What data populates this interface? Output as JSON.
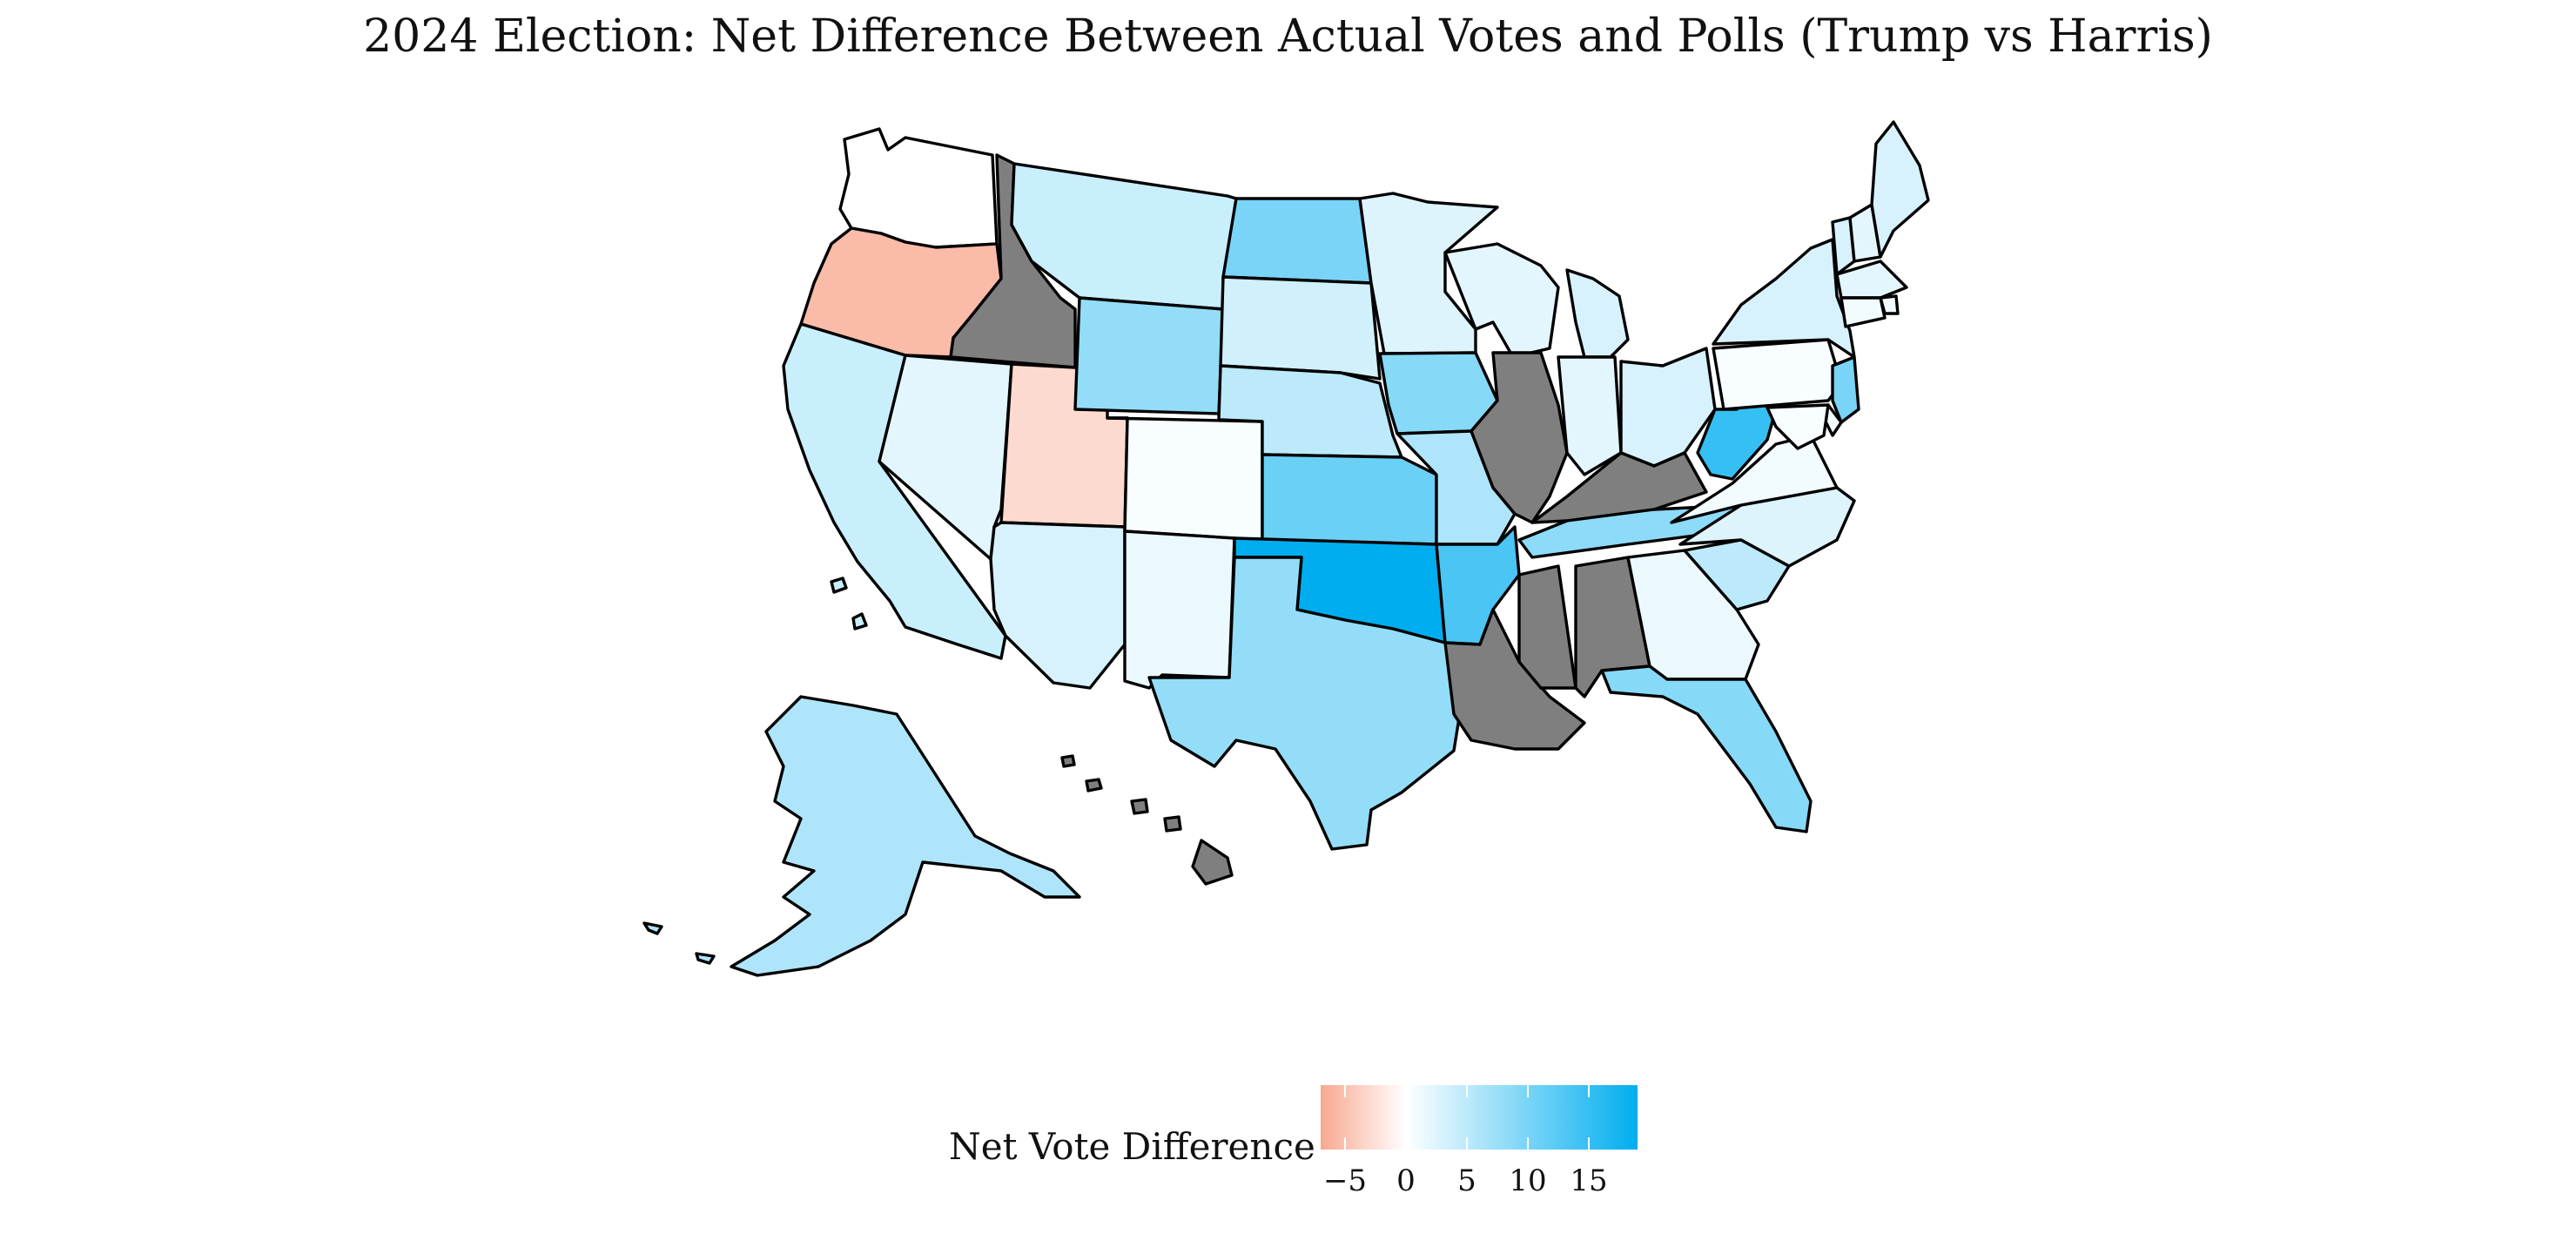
{
  "map": {
    "title": "2024 Election: Net Difference Between Actual Votes and Polls (Trump vs Harris)",
    "projection": "albers-usa-with-insets",
    "no_data_color": "#7f7f7f",
    "scale": {
      "min": -7,
      "max": 19,
      "low_color": "#f8a890",
      "mid_color": "#ffffff",
      "high_color": "#00aeef"
    },
    "states": [
      {
        "code": "WA",
        "value": 0.0
      },
      {
        "code": "OR",
        "value": -5.5
      },
      {
        "code": "CA",
        "value": 4.0
      },
      {
        "code": "ID",
        "value": null
      },
      {
        "code": "NV",
        "value": 2.0
      },
      {
        "code": "UT",
        "value": -3.0
      },
      {
        "code": "AZ",
        "value": 3.0
      },
      {
        "code": "MT",
        "value": 4.0
      },
      {
        "code": "WY",
        "value": 8.0
      },
      {
        "code": "CO",
        "value": 0.5
      },
      {
        "code": "NM",
        "value": 1.5
      },
      {
        "code": "ND",
        "value": 10.0
      },
      {
        "code": "SD",
        "value": 3.5
      },
      {
        "code": "NE",
        "value": 5.0
      },
      {
        "code": "KS",
        "value": 11.0
      },
      {
        "code": "OK",
        "value": 19.0
      },
      {
        "code": "TX",
        "value": 8.0
      },
      {
        "code": "MN",
        "value": 2.5
      },
      {
        "code": "IA",
        "value": 9.0
      },
      {
        "code": "MO",
        "value": 6.0
      },
      {
        "code": "AR",
        "value": 13.5
      },
      {
        "code": "LA",
        "value": null
      },
      {
        "code": "WI",
        "value": 2.0
      },
      {
        "code": "IL",
        "value": null
      },
      {
        "code": "MI",
        "value": 3.0
      },
      {
        "code": "IN",
        "value": 2.0
      },
      {
        "code": "OH",
        "value": 3.0
      },
      {
        "code": "KY",
        "value": null
      },
      {
        "code": "TN",
        "value": 8.5
      },
      {
        "code": "MS",
        "value": null
      },
      {
        "code": "AL",
        "value": null
      },
      {
        "code": "GA",
        "value": 1.5
      },
      {
        "code": "FL",
        "value": 9.0
      },
      {
        "code": "SC",
        "value": 5.0
      },
      {
        "code": "NC",
        "value": 2.5
      },
      {
        "code": "VA",
        "value": 1.0
      },
      {
        "code": "WV",
        "value": 15.0
      },
      {
        "code": "PA",
        "value": 0.5
      },
      {
        "code": "NY",
        "value": 3.0
      },
      {
        "code": "VT",
        "value": 3.0
      },
      {
        "code": "NH",
        "value": 2.0
      },
      {
        "code": "ME",
        "value": 3.0
      },
      {
        "code": "MA",
        "value": 2.0
      },
      {
        "code": "RI",
        "value": 1.0
      },
      {
        "code": "CT",
        "value": 1.0
      },
      {
        "code": "NJ",
        "value": 10.0
      },
      {
        "code": "DE",
        "value": 1.0
      },
      {
        "code": "MD",
        "value": 0.5
      },
      {
        "code": "AK",
        "value": 6.0
      },
      {
        "code": "HI",
        "value": null
      }
    ]
  },
  "legend": {
    "title": "Net Vote Difference",
    "ticks": [
      {
        "value": -5,
        "label": "−5"
      },
      {
        "value": 0,
        "label": "0"
      },
      {
        "value": 5,
        "label": "5"
      },
      {
        "value": 10,
        "label": "10"
      },
      {
        "value": 15,
        "label": "15"
      }
    ]
  }
}
